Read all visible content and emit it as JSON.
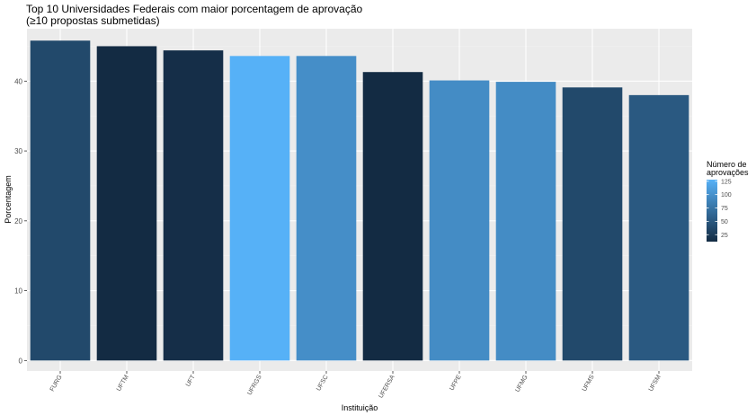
{
  "chart_data": {
    "type": "bar",
    "title_line1": "Top 10 Universidades Federais com maior porcentagem de aprovação",
    "title_line2": "(≥10 propostas submetidas)",
    "xlabel": "Instituição",
    "ylabel": "Porcentagem",
    "categories": [
      "FURG",
      "UFTM",
      "UFT",
      "UFRGS",
      "UFSC",
      "UFERSA",
      "UFPE",
      "UFMG",
      "UFMS",
      "UFSM"
    ],
    "values": [
      45.8,
      45.0,
      44.4,
      43.6,
      43.6,
      41.3,
      40.1,
      39.9,
      39.1,
      38.0
    ],
    "approvals": [
      38,
      12,
      15,
      128,
      98,
      12,
      96,
      96,
      38,
      52
    ],
    "ylim": [
      -1.5,
      47.5
    ],
    "yticks": [
      0,
      10,
      20,
      30,
      40
    ],
    "grid": true,
    "legend": {
      "title_line1": "Número de",
      "title_line2": "aprovações",
      "position": "right",
      "range": [
        12,
        128
      ],
      "ticks": [
        125,
        100,
        75,
        50,
        25
      ],
      "color_low": "#132B43",
      "color_high": "#56B1F7"
    },
    "colors": {
      "panel_background": "#ebebeb",
      "grid_major": "#ffffff",
      "grid_minor": "#f2f2f2"
    }
  }
}
